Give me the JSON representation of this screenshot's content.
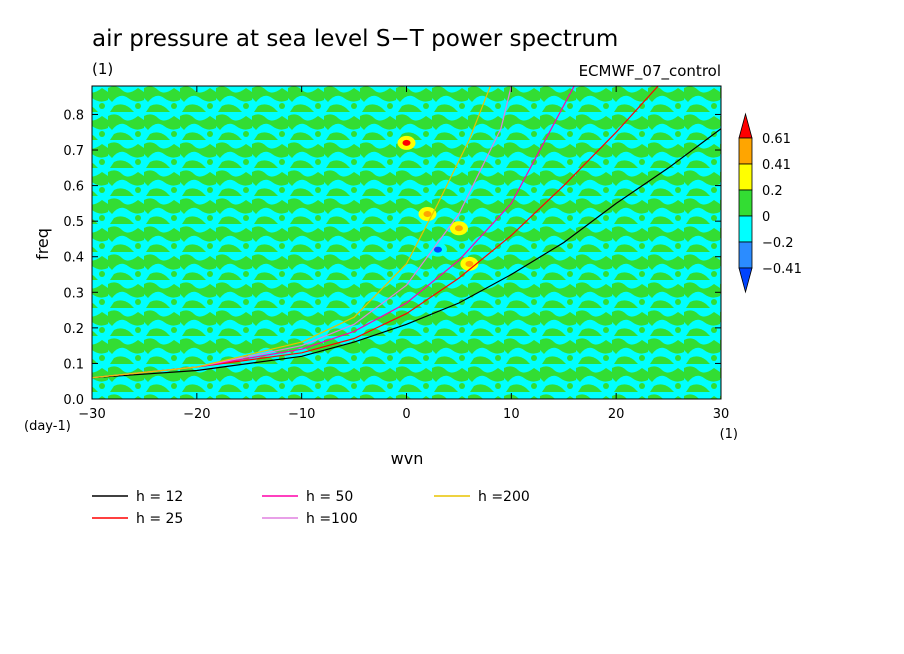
{
  "title": "air pressure at sea level S−T power spectrum",
  "units": "(1)",
  "model": "ECMWF_07_control",
  "chart_data": {
    "type": "heatmap",
    "xlabel": "wvn",
    "ylabel": "freq",
    "y_units": "(day-1)",
    "x_units": "(1)",
    "xlim": [
      -30,
      30
    ],
    "ylim": [
      0,
      0.88
    ],
    "xticks": [
      "−30",
      "−20",
      "−10",
      "0",
      "10",
      "20",
      "30"
    ],
    "yticks": [
      "0.0",
      "0.1",
      "0.2",
      "0.3",
      "0.4",
      "0.5",
      "0.6",
      "0.7",
      "0.8"
    ],
    "colorbar": {
      "levels": [
        "0.61",
        "0.41",
        "0.2",
        "0",
        "−0.2",
        "−0.41"
      ],
      "colors": [
        "#ff0000",
        "#ffa500",
        "#ffff00",
        "#33dd33",
        "#00ffff",
        "#2b8cff",
        "#0044ff"
      ]
    },
    "field_note_values": {
      "background": "mixed 0 to 0.2 (green) and −0.2 to 0 (cyan)",
      "hotspots": [
        {
          "wvn": 0,
          "freq": 0.72,
          "value": 0.61
        },
        {
          "wvn": 2,
          "freq": 0.52,
          "value": 0.41
        },
        {
          "wvn": 5,
          "freq": 0.48,
          "value": 0.41
        },
        {
          "wvn": 3,
          "freq": 0.42,
          "value": -0.41
        },
        {
          "wvn": 6,
          "freq": 0.38,
          "value": 0.41
        }
      ]
    },
    "series": [
      {
        "name": "h = 12",
        "color": "#000000",
        "x": [
          -30,
          -20,
          -10,
          -5,
          0,
          5,
          10,
          15,
          20,
          25,
          30
        ],
        "y": [
          0.06,
          0.08,
          0.12,
          0.16,
          0.21,
          0.27,
          0.35,
          0.44,
          0.55,
          0.65,
          0.76
        ]
      },
      {
        "name": "h = 25",
        "color": "#ff0000",
        "x": [
          -30,
          -20,
          -10,
          -5,
          0,
          5,
          10,
          15,
          20,
          24
        ],
        "y": [
          0.06,
          0.09,
          0.13,
          0.17,
          0.24,
          0.34,
          0.46,
          0.6,
          0.75,
          0.88
        ]
      },
      {
        "name": "h = 50",
        "color": "#ff00aa",
        "x": [
          -30,
          -20,
          -10,
          -5,
          0,
          5,
          10,
          16
        ],
        "y": [
          0.06,
          0.09,
          0.14,
          0.19,
          0.27,
          0.39,
          0.55,
          0.88
        ]
      },
      {
        "name": "h =100",
        "color": "#e080e0",
        "x": [
          -30,
          -20,
          -10,
          -5,
          0,
          5,
          9,
          10
        ],
        "y": [
          0.06,
          0.09,
          0.15,
          0.21,
          0.32,
          0.52,
          0.76,
          0.88
        ]
      },
      {
        "name": "h =200",
        "color": "#e8c400",
        "x": [
          -30,
          -20,
          -10,
          -5,
          0,
          3,
          6,
          8
        ],
        "y": [
          0.06,
          0.09,
          0.16,
          0.23,
          0.38,
          0.55,
          0.73,
          0.88
        ]
      }
    ]
  }
}
